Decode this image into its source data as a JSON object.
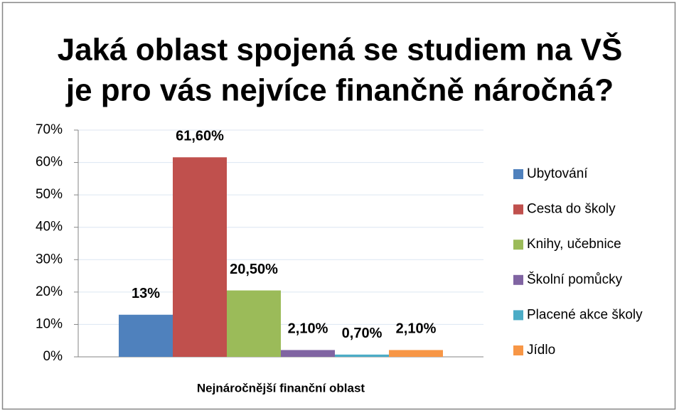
{
  "chart_data": {
    "type": "bar",
    "title": [
      "Jaká oblast spojená se studiem na VŠ",
      "je pro vás nejvíce finančně náročná?"
    ],
    "categories": [
      "Nejnáročnější finanční oblast"
    ],
    "series": [
      {
        "name": "Ubytování",
        "color": "#4f81bd",
        "values": [
          13
        ],
        "value_labels": [
          "13%"
        ]
      },
      {
        "name": "Cesta do školy",
        "color": "#c0504d",
        "values": [
          61.6
        ],
        "value_labels": [
          "61,60%"
        ]
      },
      {
        "name": "Knihy, učebnice",
        "color": "#9bbb59",
        "values": [
          20.5
        ],
        "value_labels": [
          "20,50%"
        ]
      },
      {
        "name": "Školní pomůcky",
        "color": "#8064a2",
        "values": [
          2.1
        ],
        "value_labels": [
          "2,10%"
        ]
      },
      {
        "name": "Placené akce školy",
        "color": "#4bacc6",
        "values": [
          0.7
        ],
        "value_labels": [
          "0,70%"
        ]
      },
      {
        "name": "Jídlo",
        "color": "#f79646",
        "values": [
          2.1
        ],
        "value_labels": [
          "2,10%"
        ]
      }
    ],
    "ylim": [
      0,
      70
    ],
    "yticks": [
      {
        "value": 0,
        "label": "0%"
      },
      {
        "value": 10,
        "label": "10%"
      },
      {
        "value": 20,
        "label": "20%"
      },
      {
        "value": 30,
        "label": "30%"
      },
      {
        "value": 40,
        "label": "40%"
      },
      {
        "value": 50,
        "label": "50%"
      },
      {
        "value": 60,
        "label": "60%"
      },
      {
        "value": 70,
        "label": "70%"
      }
    ],
    "grid": true,
    "legend": "right"
  }
}
